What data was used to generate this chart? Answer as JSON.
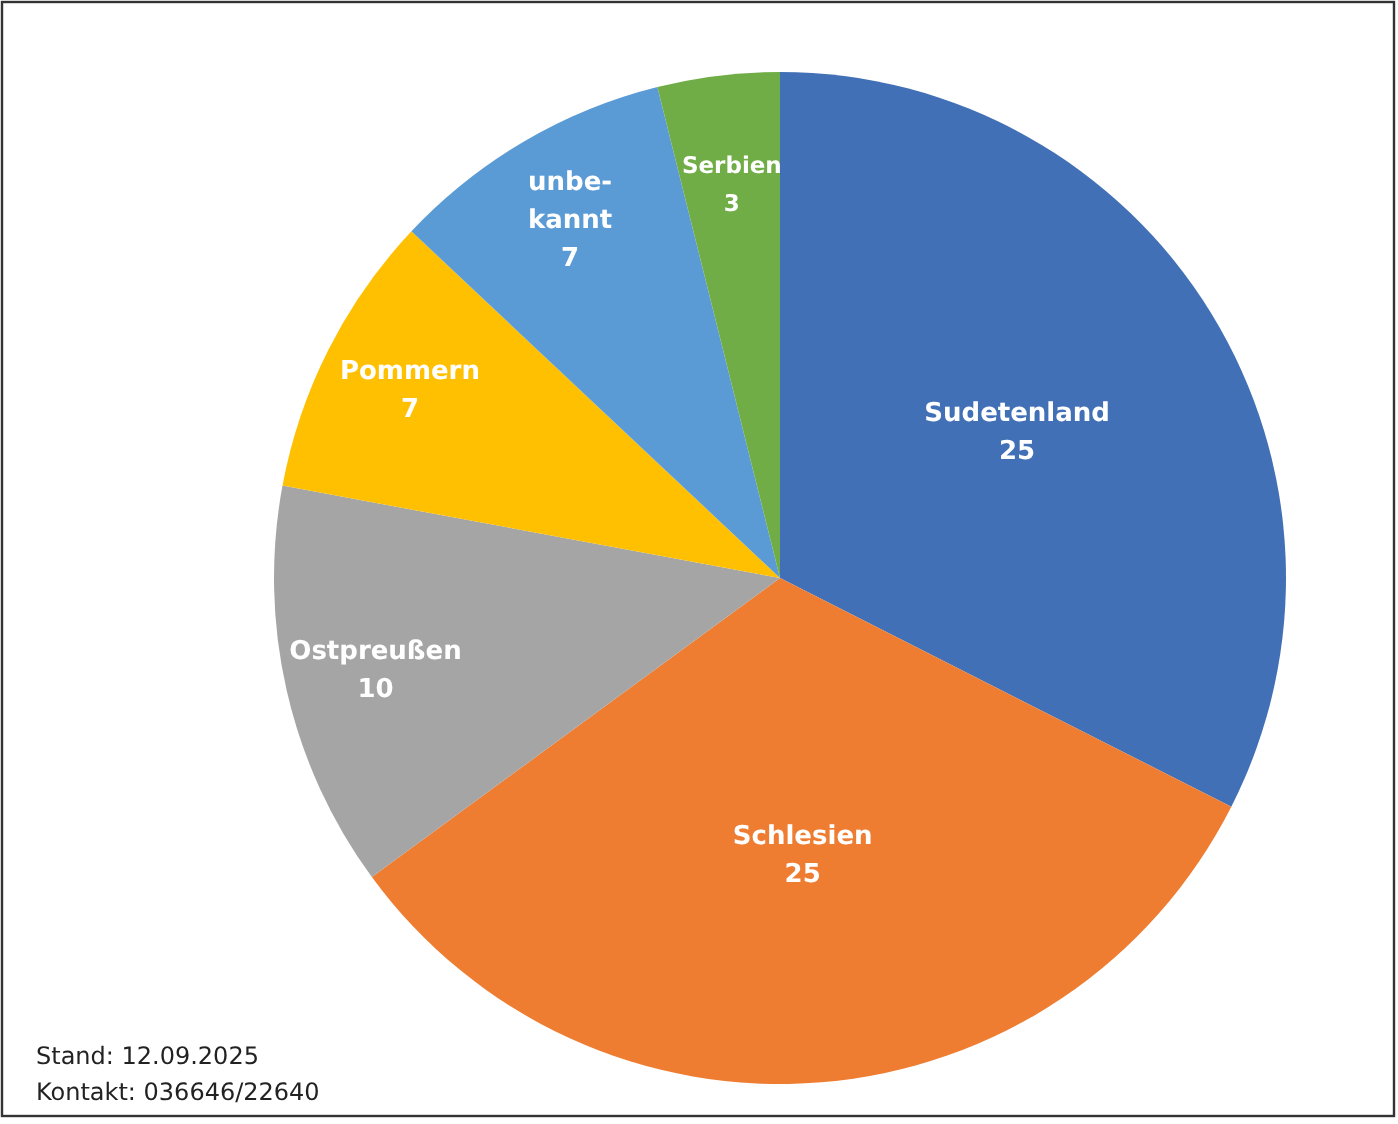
{
  "chart_data": {
    "type": "pie",
    "categories": [
      "Sudetenland",
      "Schlesien",
      "Ostpreußen",
      "Pommern",
      "unbe-\nkannt",
      "Serbien"
    ],
    "values": [
      25,
      25,
      10,
      7,
      7,
      3
    ],
    "colors": [
      "#4270b6",
      "#ee7d32",
      "#a5a5a5",
      "#fec000",
      "#5b9bd5",
      "#70ad47"
    ],
    "data_labels": true,
    "annotations": [
      "Stand: 12.09.2025",
      "Kontakt: 036646/22640"
    ]
  }
}
